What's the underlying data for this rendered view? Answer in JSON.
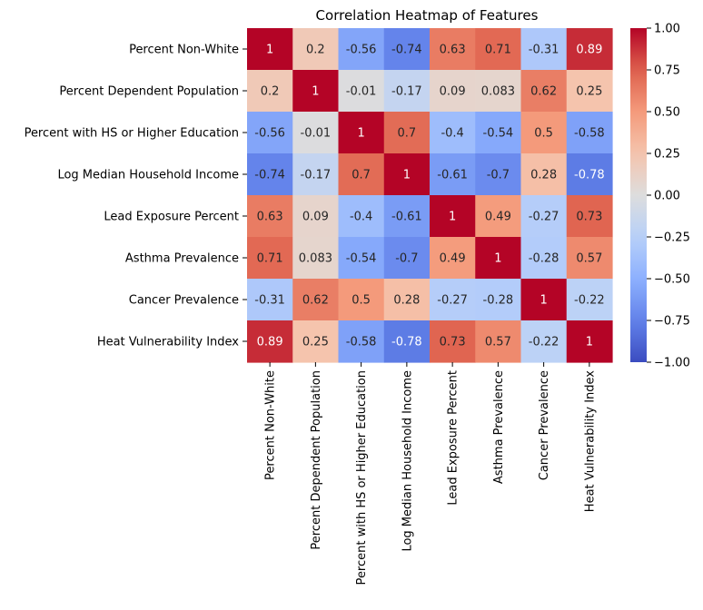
{
  "chart_data": {
    "type": "heatmap",
    "title": "Correlation Heatmap of Features",
    "xlabel": "",
    "ylabel": "",
    "labels": [
      "Percent Non-White",
      "Percent Dependent Population",
      "Percent with HS or Higher Education",
      "Log Median Household Income",
      "Lead Exposure Percent",
      "Asthma Prevalence",
      "Cancer Prevalence",
      "Heat Vulnerability Index"
    ],
    "values": [
      [
        1,
        0.2,
        -0.56,
        -0.74,
        0.63,
        0.71,
        -0.31,
        0.89
      ],
      [
        0.2,
        1,
        -0.01,
        -0.17,
        0.09,
        0.083,
        0.62,
        0.25
      ],
      [
        -0.56,
        -0.01,
        1,
        0.7,
        -0.4,
        -0.54,
        0.5,
        -0.58
      ],
      [
        -0.74,
        -0.17,
        0.7,
        1,
        -0.61,
        -0.7,
        0.28,
        -0.78
      ],
      [
        0.63,
        0.09,
        -0.4,
        -0.61,
        1,
        0.49,
        -0.27,
        0.73
      ],
      [
        0.71,
        0.083,
        -0.54,
        -0.7,
        0.49,
        1,
        -0.28,
        0.57
      ],
      [
        -0.31,
        0.62,
        0.5,
        0.28,
        -0.27,
        -0.28,
        1,
        -0.22
      ],
      [
        0.89,
        0.25,
        -0.58,
        -0.78,
        0.73,
        0.57,
        -0.22,
        1
      ]
    ],
    "cell_labels": [
      [
        "1",
        "0.2",
        "-0.56",
        "-0.74",
        "0.63",
        "0.71",
        "-0.31",
        "0.89"
      ],
      [
        "0.2",
        "1",
        "-0.01",
        "-0.17",
        "0.09",
        "0.083",
        "0.62",
        "0.25"
      ],
      [
        "-0.56",
        "-0.01",
        "1",
        "0.7",
        "-0.4",
        "-0.54",
        "0.5",
        "-0.58"
      ],
      [
        "-0.74",
        "-0.17",
        "0.7",
        "1",
        "-0.61",
        "-0.7",
        "0.28",
        "-0.78"
      ],
      [
        "0.63",
        "0.09",
        "-0.4",
        "-0.61",
        "1",
        "0.49",
        "-0.27",
        "0.73"
      ],
      [
        "0.71",
        "0.083",
        "-0.54",
        "-0.7",
        "0.49",
        "1",
        "-0.28",
        "0.57"
      ],
      [
        "-0.31",
        "0.62",
        "0.5",
        "0.28",
        "-0.27",
        "-0.28",
        "1",
        "-0.22"
      ],
      [
        "0.89",
        "0.25",
        "-0.58",
        "-0.78",
        "0.73",
        "0.57",
        "-0.22",
        "1"
      ]
    ],
    "colormap": "coolwarm",
    "vmin": -1,
    "vmax": 1,
    "colorbar_ticks": [
      1.0,
      0.75,
      0.5,
      0.25,
      0.0,
      -0.25,
      -0.5,
      -0.75,
      -1.0
    ],
    "colorbar_tick_labels": [
      "1.00",
      "0.75",
      "0.50",
      "0.25",
      "0.00",
      "−0.25",
      "−0.50",
      "−0.75",
      "−1.00"
    ],
    "colorbar_position": "right",
    "grid": false
  }
}
